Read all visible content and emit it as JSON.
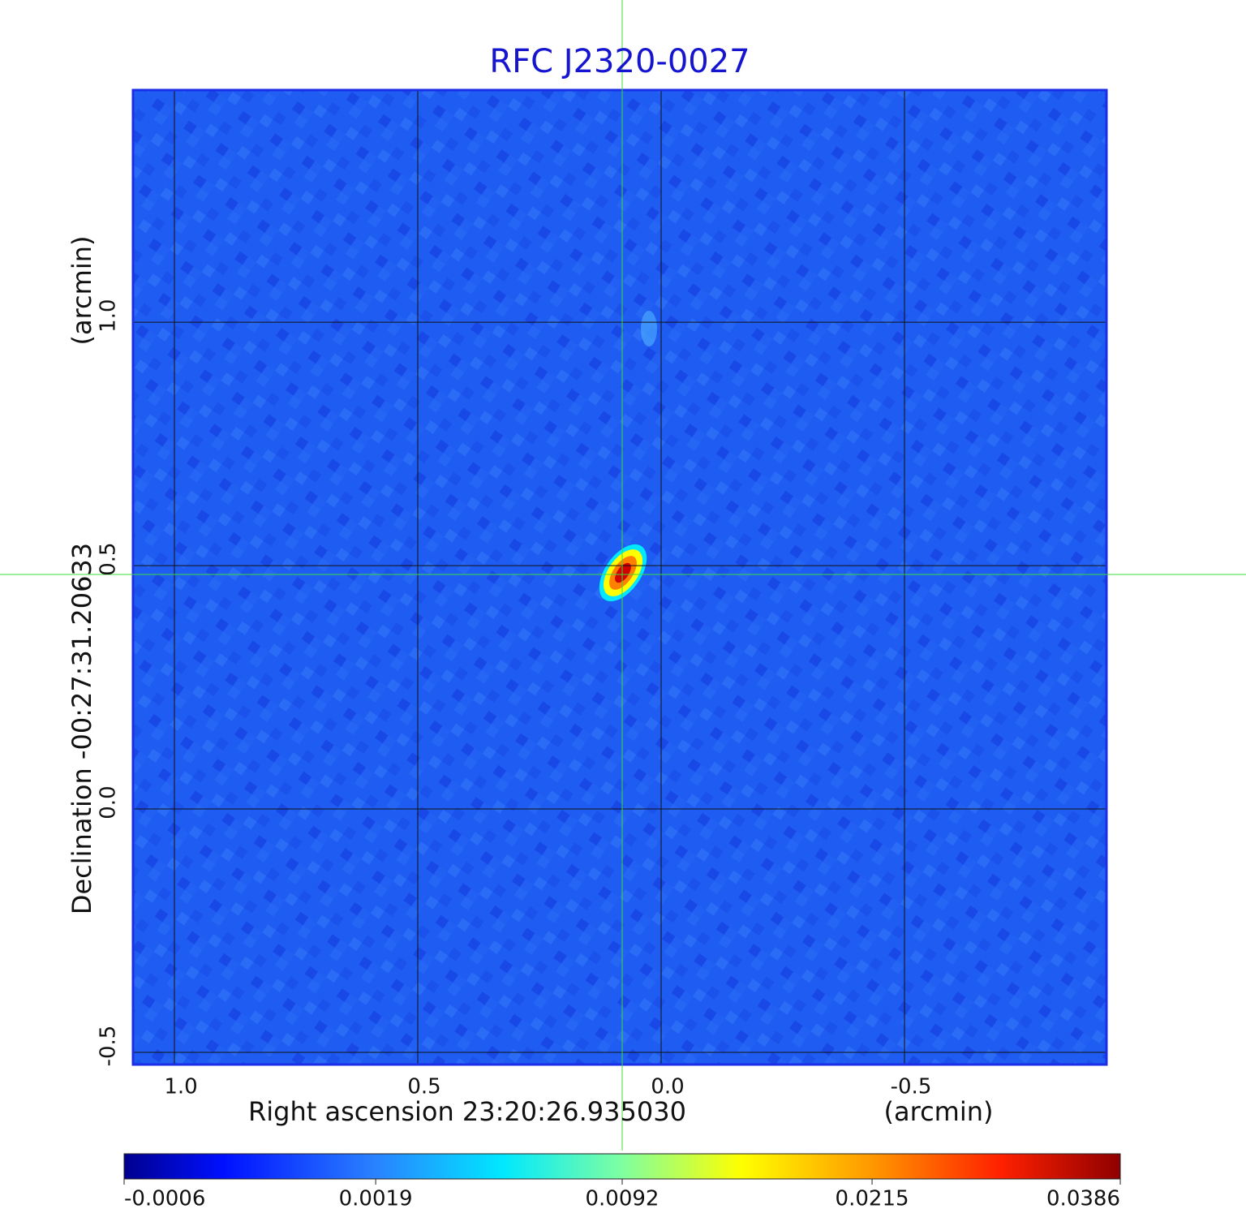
{
  "chart_data": {
    "type": "image",
    "title": "RFC J2320-0027",
    "xlabel": "Right ascension  23:20:26.935030",
    "xunit": "(arcmin)",
    "ylabel": "Declination  -00:27:31.20633",
    "yunit": "(arcmin)",
    "xlim": [
      1.085,
      -0.915
    ],
    "ylim": [
      -0.525,
      1.477
    ],
    "xticks": [
      {
        "value": 1,
        "label": "1.0"
      },
      0.5,
      {
        "value": 0,
        "label": "0.0"
      },
      -0.5
    ],
    "yticks": [
      -0.5,
      {
        "value": 0,
        "label": "0.0"
      },
      0.5,
      {
        "value": 1,
        "label": "1.0"
      }
    ],
    "grid": true,
    "colorbar_lim": [
      -0.0006,
      0.0386
    ],
    "colorbar_scale": "sqrt",
    "colorbar_ticks": [
      -0.0006,
      0.0019,
      0.0092,
      0.0215,
      0.0386
    ]
  }
}
